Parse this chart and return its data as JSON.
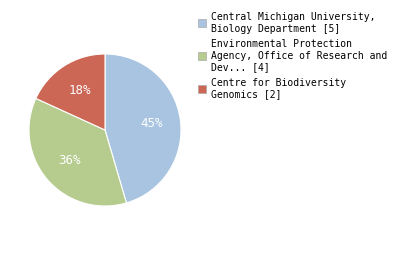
{
  "slices": [
    {
      "label": "Central Michigan University,\nBiology Department [5]",
      "value": 45,
      "color": "#a8c4e0"
    },
    {
      "label": "Environmental Protection\nAgency, Office of Research and\nDev... [4]",
      "value": 36,
      "color": "#b5cc8e"
    },
    {
      "label": "Centre for Biodiversity\nGenomics [2]",
      "value": 18,
      "color": "#cc6655"
    }
  ],
  "pct_labels": [
    "45%",
    "36%",
    "18%"
  ],
  "background_color": "#ffffff",
  "pct_font_size": 9,
  "legend_font_size": 7,
  "startangle": 90
}
